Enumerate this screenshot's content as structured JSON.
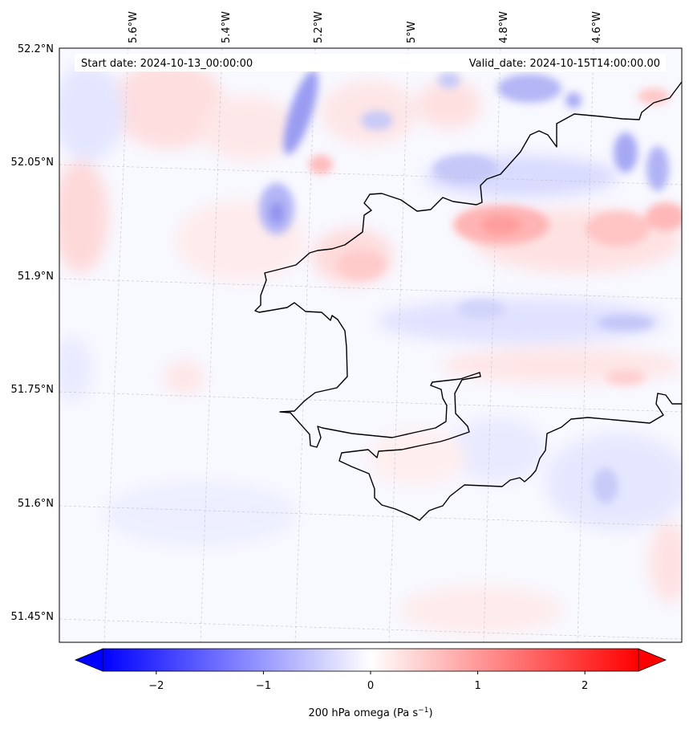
{
  "map": {
    "start_label": "Start date: 2024-10-13_00:00:00",
    "valid_label": "Valid_date: 2024-10-15T14:00:00.00",
    "lon_labels": [
      "5.6°W",
      "5.4°W",
      "5.2°W",
      "5°W",
      "4.8°W",
      "4.6°W"
    ],
    "lat_labels": [
      "52.2°N",
      "52.05°N",
      "51.9°N",
      "51.75°N",
      "51.6°N",
      "51.45°N"
    ],
    "colorbar": {
      "min": -2.5,
      "max": 2.5,
      "ticks": [
        -2,
        -1,
        0,
        1,
        2
      ],
      "tick_labels": [
        "−2",
        "−1",
        "0",
        "1",
        "2"
      ],
      "label_text": "200 hPa omega (Pa s",
      "label_sup": "−1",
      "label_close": ")",
      "colormap": "bwr",
      "low_color": "#0000ff",
      "mid_color": "#ffffff",
      "high_color": "#ff0000",
      "extend": "both"
    },
    "coastline_color": "#000000",
    "gridline_color": "#bbbbbb"
  }
}
